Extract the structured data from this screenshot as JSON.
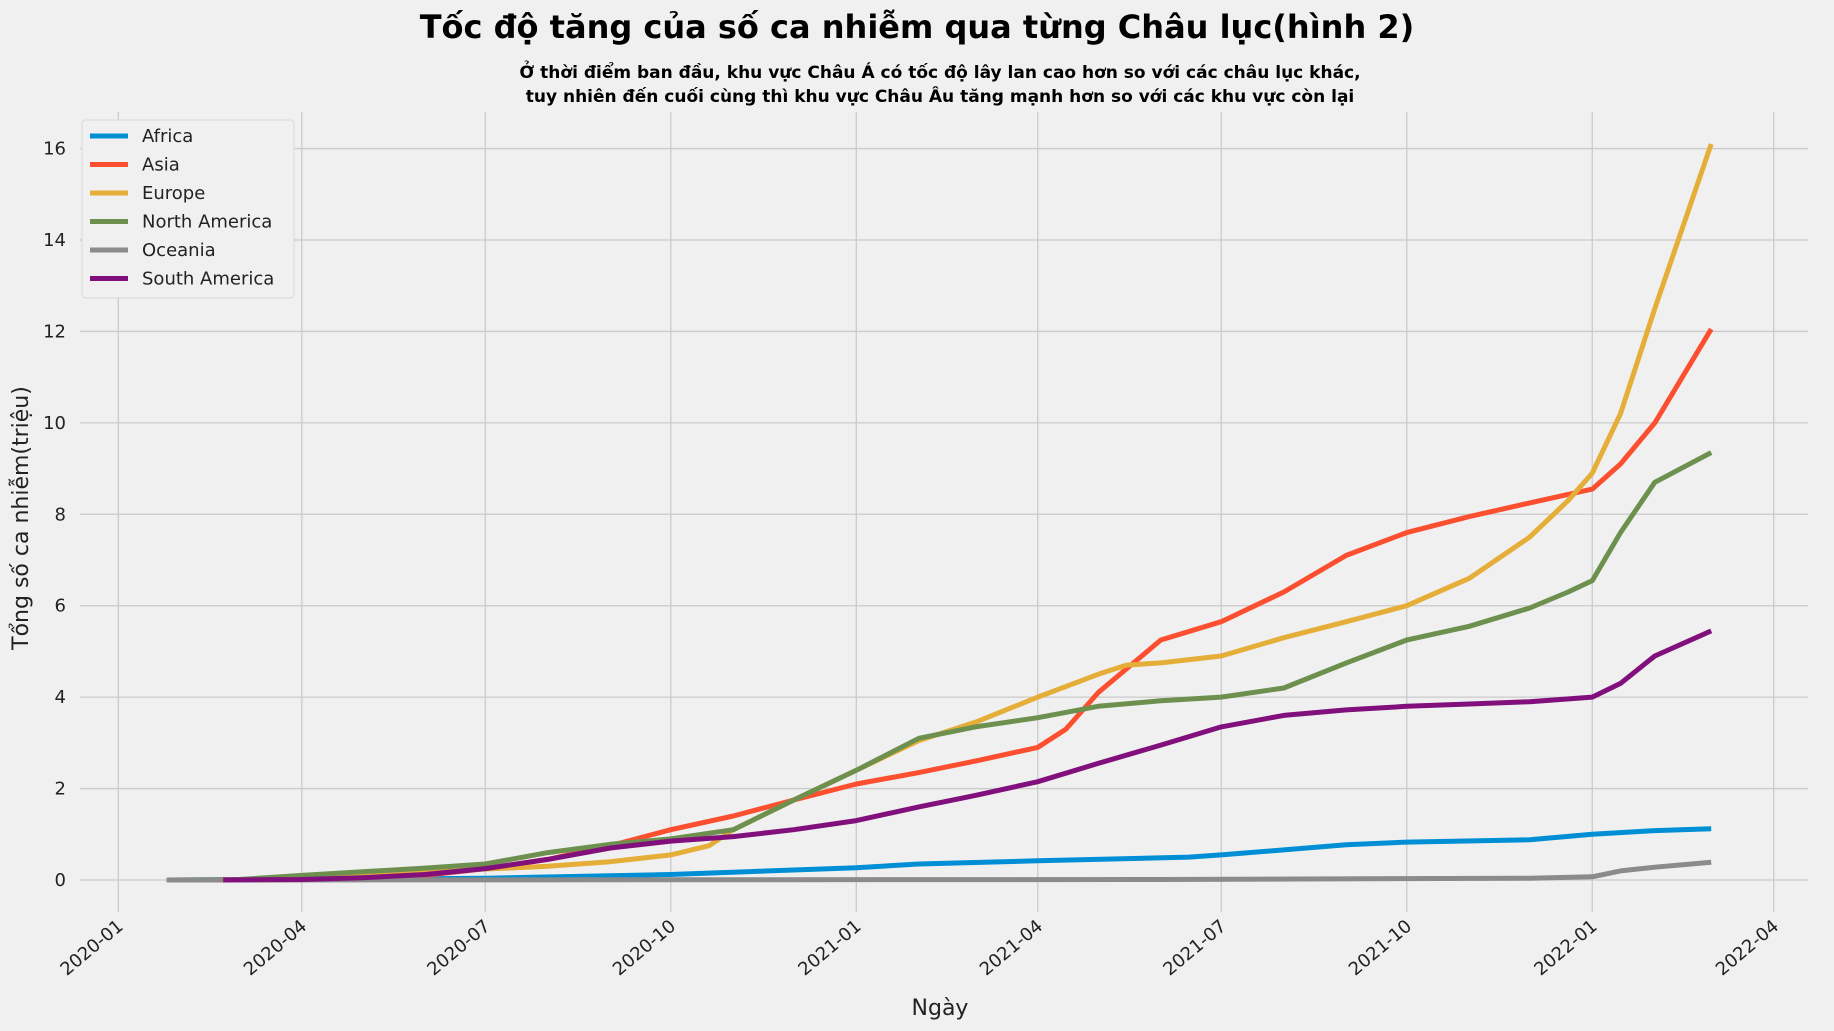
{
  "chart_data": {
    "type": "line",
    "title": "Tốc độ tăng của số ca nhiễm qua từng Châu lục(hình 2)",
    "subtitle": [
      "Ở thời điểm ban đầu, khu vực Châu Á có tốc độ lây lan cao hơn so với các châu lục khác,",
      "tuy nhiên đến cuối cùng thì khu vực Châu Âu tăng mạnh hơn so với các khu vực còn lại"
    ],
    "xlabel": "Ngày",
    "ylabel": "Tổng số ca nhiễm(triệu)",
    "x_type": "date",
    "xlim": [
      "2019-12-13",
      "2022-04-18"
    ],
    "ylim": [
      -0.7,
      16.8
    ],
    "x_ticks": [
      "2020-01",
      "2020-04",
      "2020-07",
      "2020-10",
      "2021-01",
      "2021-04",
      "2021-07",
      "2021-10",
      "2022-01",
      "2022-04"
    ],
    "y_ticks": [
      0,
      2,
      4,
      6,
      8,
      10,
      12,
      14,
      16
    ],
    "grid": true,
    "legend_position": "top-left",
    "series": [
      {
        "name": "Africa",
        "color": "#008fd5",
        "points": [
          [
            "2020-01-25",
            0
          ],
          [
            "2020-04-01",
            0.01
          ],
          [
            "2020-07-01",
            0.04
          ],
          [
            "2020-10-01",
            0.12
          ],
          [
            "2021-01-01",
            0.27
          ],
          [
            "2021-02-01",
            0.35
          ],
          [
            "2021-04-01",
            0.42
          ],
          [
            "2021-06-15",
            0.5
          ],
          [
            "2021-07-01",
            0.55
          ],
          [
            "2021-09-01",
            0.77
          ],
          [
            "2021-10-01",
            0.83
          ],
          [
            "2021-12-01",
            0.88
          ],
          [
            "2022-01-01",
            1.0
          ],
          [
            "2022-02-01",
            1.08
          ],
          [
            "2022-03-01",
            1.12
          ]
        ]
      },
      {
        "name": "Asia",
        "color": "#fc4f30",
        "points": [
          [
            "2020-02-22",
            0
          ],
          [
            "2020-04-01",
            0.02
          ],
          [
            "2020-06-01",
            0.1
          ],
          [
            "2020-07-01",
            0.25
          ],
          [
            "2020-08-01",
            0.45
          ],
          [
            "2020-09-01",
            0.75
          ],
          [
            "2020-10-01",
            1.1
          ],
          [
            "2020-11-01",
            1.4
          ],
          [
            "2020-12-01",
            1.75
          ],
          [
            "2021-01-01",
            2.1
          ],
          [
            "2021-02-01",
            2.35
          ],
          [
            "2021-03-01",
            2.6
          ],
          [
            "2021-04-01",
            2.9
          ],
          [
            "2021-04-15",
            3.3
          ],
          [
            "2021-05-01",
            4.1
          ],
          [
            "2021-06-01",
            5.25
          ],
          [
            "2021-07-01",
            5.65
          ],
          [
            "2021-08-01",
            6.3
          ],
          [
            "2021-09-01",
            7.1
          ],
          [
            "2021-10-01",
            7.6
          ],
          [
            "2021-11-01",
            7.95
          ],
          [
            "2021-12-01",
            8.25
          ],
          [
            "2022-01-01",
            8.55
          ],
          [
            "2022-01-15",
            9.1
          ],
          [
            "2022-02-01",
            10.0
          ],
          [
            "2022-03-01",
            12.05
          ]
        ]
      },
      {
        "name": "Europe",
        "color": "#e5ae38",
        "points": [
          [
            "2020-02-22",
            0
          ],
          [
            "2020-03-15",
            0.02
          ],
          [
            "2020-04-01",
            0.07
          ],
          [
            "2020-06-01",
            0.18
          ],
          [
            "2020-08-01",
            0.3
          ],
          [
            "2020-09-01",
            0.4
          ],
          [
            "2020-10-01",
            0.55
          ],
          [
            "2020-10-20",
            0.75
          ],
          [
            "2020-11-01",
            1.1
          ],
          [
            "2020-12-01",
            1.75
          ],
          [
            "2021-01-01",
            2.4
          ],
          [
            "2021-02-01",
            3.05
          ],
          [
            "2021-03-01",
            3.45
          ],
          [
            "2021-04-01",
            4.0
          ],
          [
            "2021-05-01",
            4.5
          ],
          [
            "2021-05-15",
            4.7
          ],
          [
            "2021-06-01",
            4.75
          ],
          [
            "2021-07-01",
            4.9
          ],
          [
            "2021-08-01",
            5.3
          ],
          [
            "2021-09-01",
            5.65
          ],
          [
            "2021-10-01",
            6.0
          ],
          [
            "2021-11-01",
            6.6
          ],
          [
            "2021-12-01",
            7.5
          ],
          [
            "2021-12-20",
            8.3
          ],
          [
            "2022-01-01",
            8.9
          ],
          [
            "2022-01-15",
            10.2
          ],
          [
            "2022-02-01",
            12.5
          ],
          [
            "2022-02-15",
            14.3
          ],
          [
            "2022-03-01",
            16.1
          ]
        ]
      },
      {
        "name": "North America",
        "color": "#6d904f",
        "points": [
          [
            "2020-01-25",
            0
          ],
          [
            "2020-03-01",
            0.01
          ],
          [
            "2020-04-01",
            0.1
          ],
          [
            "2020-05-01",
            0.18
          ],
          [
            "2020-06-01",
            0.26
          ],
          [
            "2020-07-01",
            0.35
          ],
          [
            "2020-08-01",
            0.6
          ],
          [
            "2020-09-01",
            0.78
          ],
          [
            "2020-10-01",
            0.9
          ],
          [
            "2020-11-01",
            1.1
          ],
          [
            "2020-12-01",
            1.75
          ],
          [
            "2021-01-01",
            2.4
          ],
          [
            "2021-02-01",
            3.1
          ],
          [
            "2021-03-01",
            3.35
          ],
          [
            "2021-04-01",
            3.55
          ],
          [
            "2021-05-01",
            3.8
          ],
          [
            "2021-06-01",
            3.92
          ],
          [
            "2021-07-01",
            4.0
          ],
          [
            "2021-08-01",
            4.2
          ],
          [
            "2021-09-01",
            4.75
          ],
          [
            "2021-10-01",
            5.25
          ],
          [
            "2021-11-01",
            5.55
          ],
          [
            "2021-12-01",
            5.95
          ],
          [
            "2021-12-20",
            6.3
          ],
          [
            "2022-01-01",
            6.55
          ],
          [
            "2022-01-15",
            7.6
          ],
          [
            "2022-02-01",
            8.7
          ],
          [
            "2022-03-01",
            9.35
          ]
        ]
      },
      {
        "name": "Oceania",
        "color": "#8b8b8b",
        "points": [
          [
            "2020-01-25",
            0
          ],
          [
            "2021-06-01",
            0.01
          ],
          [
            "2021-12-01",
            0.04
          ],
          [
            "2022-01-01",
            0.07
          ],
          [
            "2022-01-15",
            0.2
          ],
          [
            "2022-02-01",
            0.28
          ],
          [
            "2022-03-01",
            0.39
          ]
        ]
      },
      {
        "name": "South America",
        "color": "#810f7c",
        "points": [
          [
            "2020-02-22",
            0
          ],
          [
            "2020-04-01",
            0.01
          ],
          [
            "2020-05-01",
            0.05
          ],
          [
            "2020-06-01",
            0.12
          ],
          [
            "2020-07-01",
            0.25
          ],
          [
            "2020-08-01",
            0.45
          ],
          [
            "2020-09-01",
            0.7
          ],
          [
            "2020-10-01",
            0.85
          ],
          [
            "2020-11-01",
            0.95
          ],
          [
            "2020-12-01",
            1.1
          ],
          [
            "2021-01-01",
            1.3
          ],
          [
            "2021-02-01",
            1.6
          ],
          [
            "2021-03-01",
            1.85
          ],
          [
            "2021-04-01",
            2.15
          ],
          [
            "2021-05-01",
            2.55
          ],
          [
            "2021-06-01",
            2.95
          ],
          [
            "2021-07-01",
            3.35
          ],
          [
            "2021-08-01",
            3.6
          ],
          [
            "2021-09-01",
            3.72
          ],
          [
            "2021-10-01",
            3.8
          ],
          [
            "2021-11-01",
            3.85
          ],
          [
            "2021-12-01",
            3.9
          ],
          [
            "2022-01-01",
            4.0
          ],
          [
            "2022-01-15",
            4.3
          ],
          [
            "2022-02-01",
            4.9
          ],
          [
            "2022-03-01",
            5.45
          ]
        ]
      }
    ]
  }
}
